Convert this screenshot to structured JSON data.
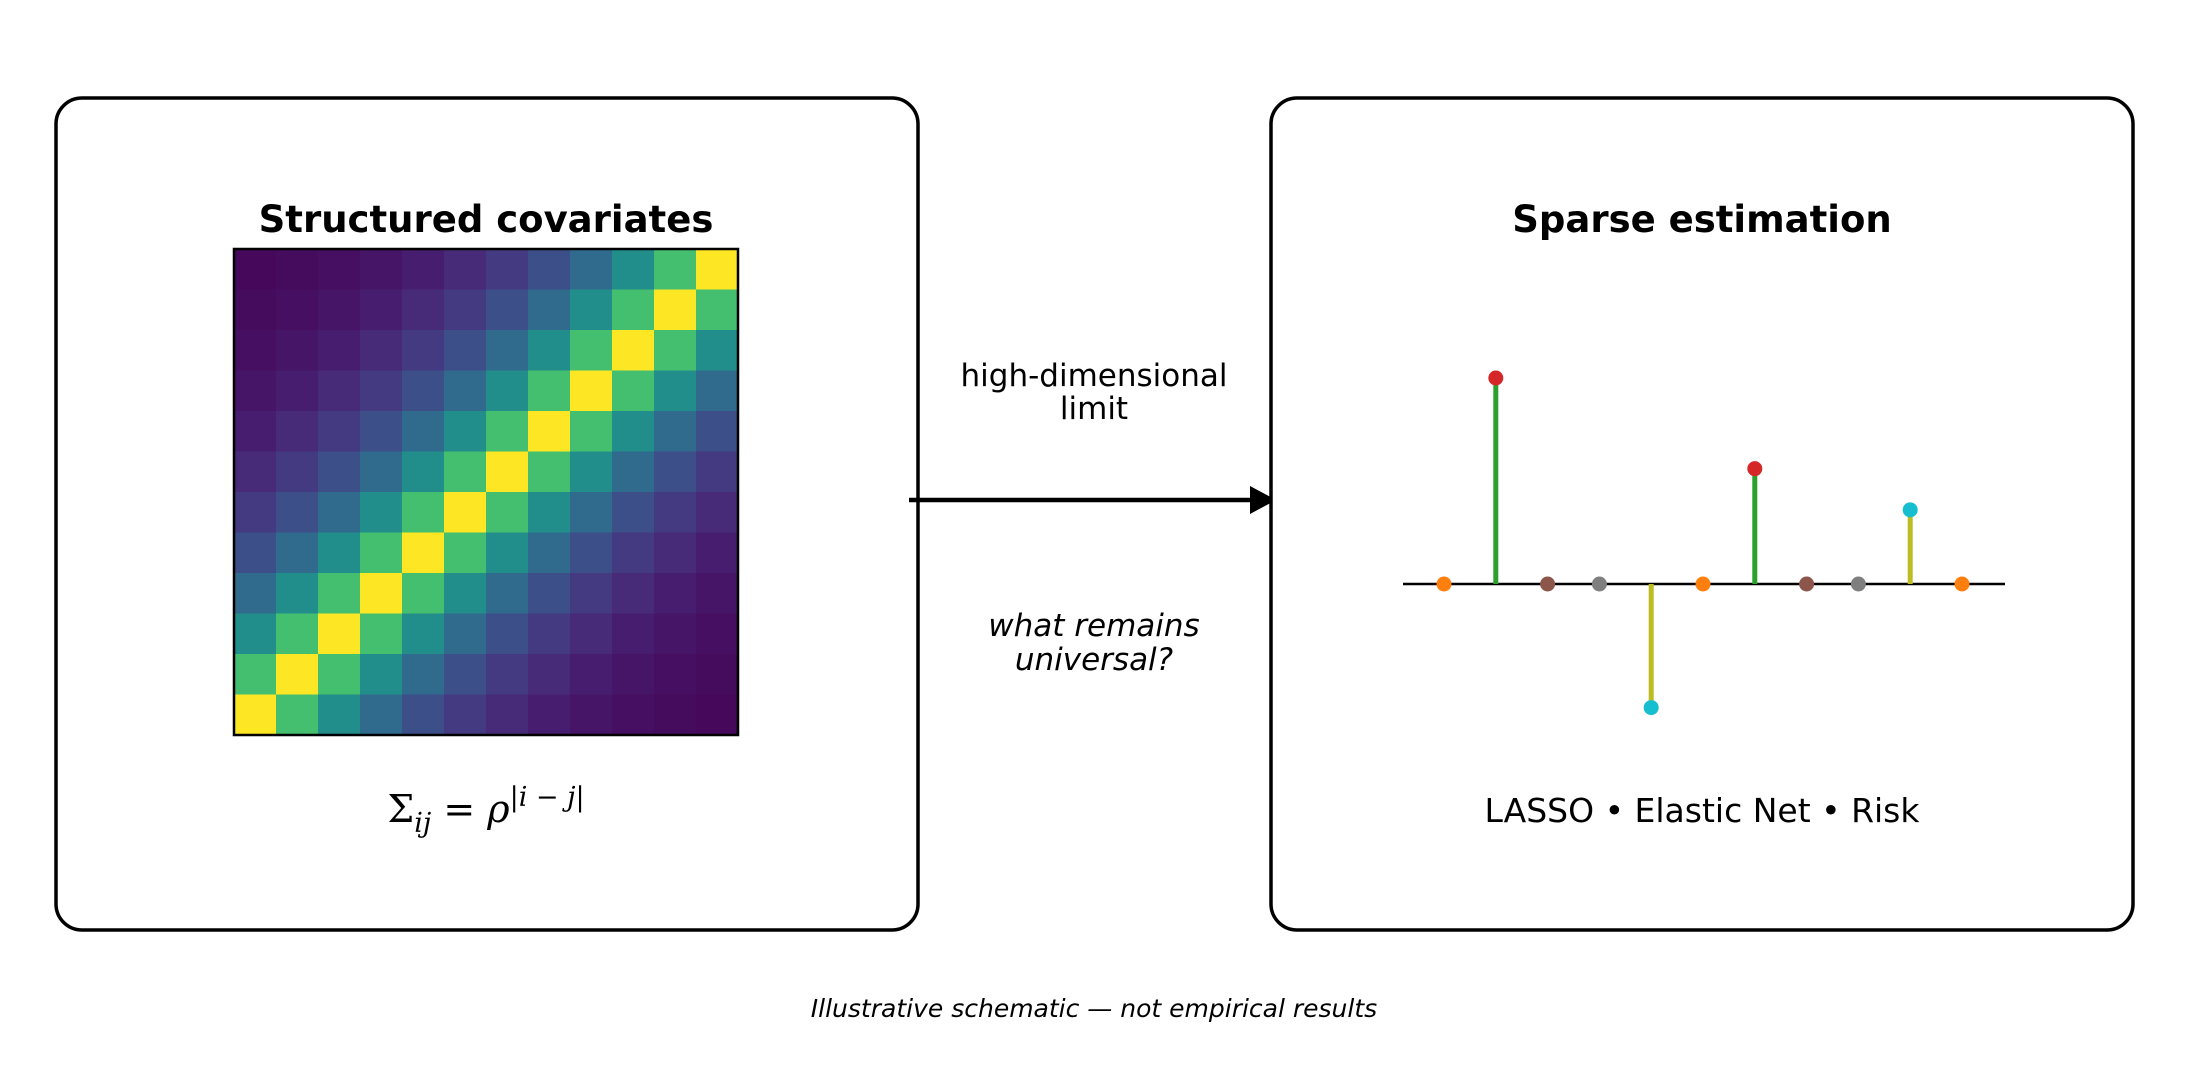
{
  "left_panel": {
    "title": "Structured covariates",
    "formula": "Σij = ρ|i − j|",
    "formula_parts": {
      "symbol": "Σ",
      "subscript": "ij",
      "equals": " = ρ",
      "exponent": "|i − j|"
    },
    "heatmap": {
      "size": 12,
      "rho": 0.7,
      "colormap": "viridis",
      "orientation": "anti-diagonal peak (yellow) from bottom-left to top-right"
    }
  },
  "arrow": {
    "label_top": [
      "high-dimensional",
      "limit"
    ],
    "label_bottom": [
      "what remains",
      "universal?"
    ]
  },
  "right_panel": {
    "title": "Sparse estimation",
    "methods": "LASSO • Elastic Net • Risk",
    "stems": [
      {
        "value": 0.0,
        "dot_color": "#ff7f0e",
        "stem_color": "#2ca02c"
      },
      {
        "value": 1.0,
        "dot_color": "#d62728",
        "stem_color": "#2ca02c"
      },
      {
        "value": 0.0,
        "dot_color": "#8c564b",
        "stem_color": "#2ca02c"
      },
      {
        "value": 0.0,
        "dot_color": "#7f7f7f",
        "stem_color": "#2ca02c"
      },
      {
        "value": -0.6,
        "dot_color": "#17becf",
        "stem_color": "#bcbd22"
      },
      {
        "value": 0.0,
        "dot_color": "#ff7f0e",
        "stem_color": "#2ca02c"
      },
      {
        "value": 0.56,
        "dot_color": "#d62728",
        "stem_color": "#2ca02c"
      },
      {
        "value": 0.0,
        "dot_color": "#8c564b",
        "stem_color": "#2ca02c"
      },
      {
        "value": 0.0,
        "dot_color": "#7f7f7f",
        "stem_color": "#2ca02c"
      },
      {
        "value": 0.36,
        "dot_color": "#17becf",
        "stem_color": "#bcbd22"
      },
      {
        "value": 0.0,
        "dot_color": "#ff7f0e",
        "stem_color": "#2ca02c"
      }
    ]
  },
  "caption": "Illustrative schematic — not empirical results"
}
